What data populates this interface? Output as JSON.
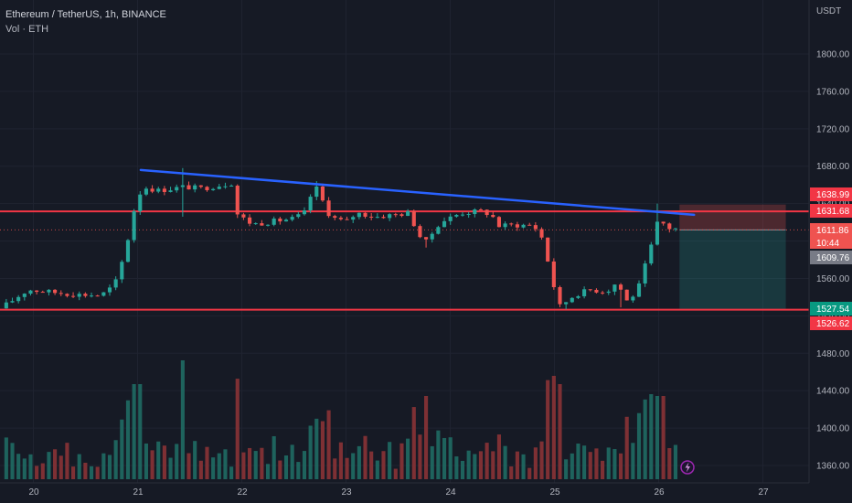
{
  "header": {
    "symbol_line": "Ethereum / TetherUS, 1h, BINANCE",
    "volume_line": "Vol · ETH"
  },
  "axis": {
    "currency": "USDT"
  },
  "colors": {
    "background": "#161a25",
    "grid": "#1f2330",
    "up": "#26a69a",
    "down": "#ef5350",
    "trendline": "#2962ff",
    "level": "#f23645",
    "axis_text": "#b2b5be"
  },
  "chart_data": {
    "type": "candlestick",
    "title": "Ethereum / TetherUS, 1h, BINANCE",
    "y_axis": {
      "min": 1340,
      "max": 1840,
      "ticks": [
        1360,
        1400,
        1440,
        1480,
        1520,
        1560,
        1600,
        1640,
        1680,
        1720,
        1760,
        1800
      ]
    },
    "x_axis": {
      "labels": [
        "20",
        "21",
        "22",
        "23",
        "24",
        "25",
        "26",
        "27"
      ]
    },
    "horizontal_levels": [
      1631.68,
      1526.62
    ],
    "trendline": {
      "from": {
        "day": 21.03,
        "price": 1676
      },
      "to": {
        "day": 26.34,
        "price": 1628
      }
    },
    "position": {
      "entry": 1611.86,
      "stop": 1638.99,
      "target": 1527.54,
      "start_day": 26.2,
      "end_day": 27.22
    },
    "price_labels": [
      {
        "text": "1638.99",
        "price": 1638.99,
        "color": "#f23645"
      },
      {
        "text": "1631.68",
        "price": 1631.68,
        "color": "#f23645"
      },
      {
        "text": "1611.86",
        "price": 1611.86,
        "color": "#ef5350"
      },
      {
        "text": "10:44",
        "price": 1611.86,
        "color": "#ef5350"
      },
      {
        "text": "1609.76",
        "price": 1609.76,
        "color": "#787b86"
      },
      {
        "text": "1527.54",
        "price": 1527.54,
        "color": "#089981"
      },
      {
        "text": "1526.62",
        "price": 1526.62,
        "color": "#f23645"
      }
    ],
    "keypoints": [
      [
        19.74,
        1532
      ],
      [
        19.95,
        1548
      ],
      [
        20.2,
        1545
      ],
      [
        20.4,
        1543
      ],
      [
        20.65,
        1542
      ],
      [
        20.78,
        1553
      ],
      [
        20.88,
        1588
      ],
      [
        20.98,
        1640
      ],
      [
        21.05,
        1658
      ],
      [
        21.2,
        1654
      ],
      [
        21.45,
        1658
      ],
      [
        21.6,
        1656
      ],
      [
        21.8,
        1660
      ],
      [
        21.9,
        1662
      ],
      [
        21.96,
        1628
      ],
      [
        22.1,
        1618
      ],
      [
        22.3,
        1621
      ],
      [
        22.5,
        1624
      ],
      [
        22.6,
        1630
      ],
      [
        22.7,
        1660
      ],
      [
        22.85,
        1626
      ],
      [
        23.0,
        1620
      ],
      [
        23.1,
        1630
      ],
      [
        23.3,
        1626
      ],
      [
        23.6,
        1630
      ],
      [
        23.75,
        1596
      ],
      [
        23.9,
        1620
      ],
      [
        24.1,
        1630
      ],
      [
        24.3,
        1632
      ],
      [
        24.4,
        1628
      ],
      [
        24.45,
        1616
      ],
      [
        24.6,
        1617
      ],
      [
        24.8,
        1617
      ],
      [
        24.9,
        1600
      ],
      [
        24.96,
        1565
      ],
      [
        25.05,
        1530
      ],
      [
        25.2,
        1543
      ],
      [
        25.35,
        1548
      ],
      [
        25.5,
        1546
      ],
      [
        25.6,
        1556
      ],
      [
        25.7,
        1535
      ],
      [
        25.8,
        1548
      ],
      [
        25.93,
        1595
      ],
      [
        26.0,
        1624
      ],
      [
        26.08,
        1614
      ],
      [
        26.2,
        1613
      ],
      [
        26.22,
        1615
      ]
    ],
    "volume": {
      "visible": true,
      "max_value": 100
    }
  }
}
